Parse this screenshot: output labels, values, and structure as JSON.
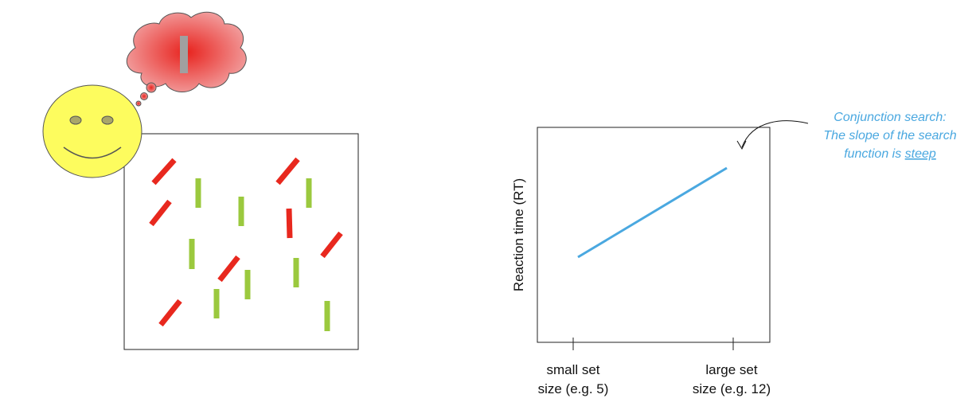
{
  "chart": {
    "y_axis_label": "Reaction time (RT)",
    "x_tick_labels": [
      [
        "small set",
        "size (e.g. 5)"
      ],
      [
        "large set",
        "size (e.g. 12)"
      ]
    ]
  },
  "annotation": {
    "lines": [
      "Conjunction search:",
      "The slope of the search"
    ],
    "last_line_start": "function is ",
    "last_line_emphasis": "steep"
  }
}
